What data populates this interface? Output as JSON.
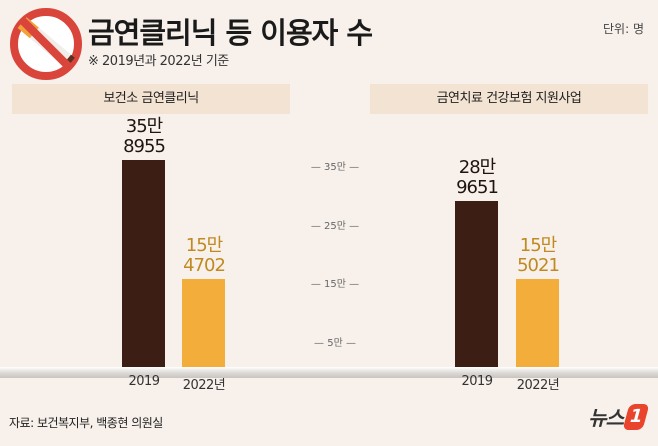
{
  "header": {
    "title": "금연클리닉 등 이용자 수",
    "subtitle": "※ 2019년과 2022년 기준",
    "unit": "단위: 명"
  },
  "footer": {
    "source": "자료: 보건복지부, 백종현 의원실",
    "logo": "뉴스1"
  },
  "colors": {
    "bar_2019": "#3d1e14",
    "bar_2022": "#f2ad3b",
    "label_2022": "#c08a22",
    "background": "#f8f1eb"
  },
  "icons": {
    "header": "no-smoking-icon"
  },
  "chart_data": [
    {
      "type": "bar",
      "title": "보건소 금연클리닉",
      "categories": [
        "2019",
        "2022년"
      ],
      "values": [
        358955,
        154702
      ],
      "data_labels": [
        [
          "35만",
          "8955"
        ],
        [
          "15만",
          "4702"
        ]
      ],
      "ylim": [
        0,
        400000
      ]
    },
    {
      "type": "bar",
      "title": "금연치료 건강보험 지원사업",
      "categories": [
        "2019",
        "2022년"
      ],
      "values": [
        289651,
        155021
      ],
      "data_labels": [
        [
          "28만",
          "9651"
        ],
        [
          "15만",
          "5021"
        ]
      ],
      "ylim": [
        0,
        400000
      ]
    }
  ],
  "axis": {
    "ticks": [
      {
        "value": 350000,
        "label": "35만"
      },
      {
        "value": 250000,
        "label": "25만"
      },
      {
        "value": 150000,
        "label": "15만"
      },
      {
        "value": 50000,
        "label": "5만"
      }
    ]
  }
}
